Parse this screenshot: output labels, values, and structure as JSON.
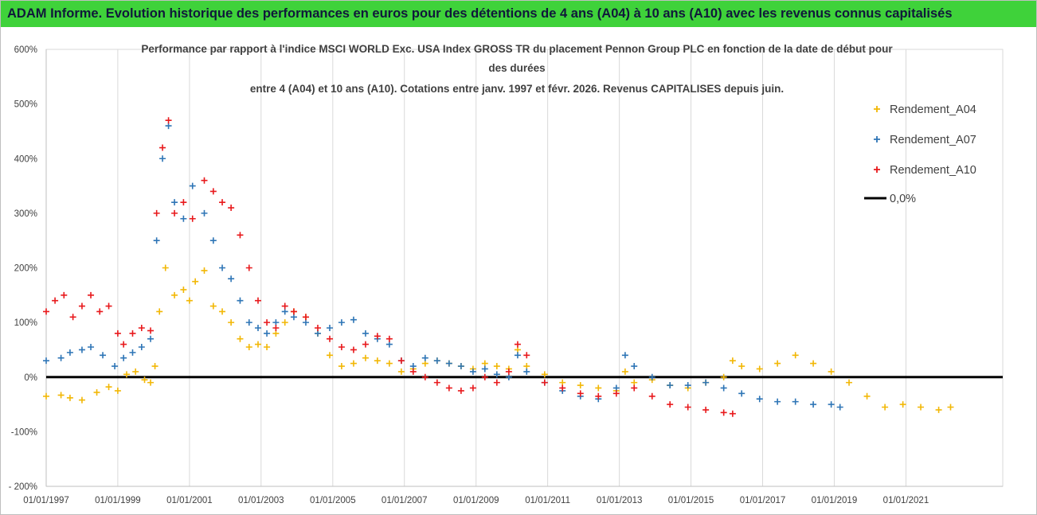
{
  "banner": {
    "text": "ADAM Informe. Evolution historique des performances en euros pour des détentions de 4 ans (A04) à 10 ans (A10) avec les revenus connus capitalisés",
    "background": "#3fd23a"
  },
  "chart_data": {
    "type": "scatter",
    "title_lines": [
      "Performance par rapport à l'indice MSCI WORLD Exc. USA Index GROSS TR  du placement Pennon Group PLC en fonction de la date de début pour",
      "des durées",
      "entre 4 (A04) et 10 ans (A10).  Cotations entre janv. 1997 et févr. 2026. Revenus CAPITALISES depuis juin."
    ],
    "xlabel": "",
    "ylabel": "",
    "x_range": [
      "1997-01-01",
      "2023-09-15"
    ],
    "x_ticks": [
      "01/01/1997",
      "01/01/1999",
      "01/01/2001",
      "01/01/2003",
      "01/01/2005",
      "01/01/2007",
      "01/01/2009",
      "01/01/2011",
      "01/01/2013",
      "01/01/2015",
      "01/01/2017",
      "01/01/2019",
      "01/01/2021"
    ],
    "y_unit": "%",
    "y_range": [
      -200,
      600
    ],
    "y_ticks": [
      "- 200%",
      "-100%",
      "0%",
      "100%",
      "200%",
      "300%",
      "400%",
      "500%",
      "600%"
    ],
    "y_tick_values": [
      -200,
      -100,
      0,
      100,
      200,
      300,
      400,
      500,
      600
    ],
    "grid": {
      "vertical": true,
      "horizontal": false
    },
    "legend_position": "right",
    "legend": [
      "Rendement_A04",
      "Rendement_A07",
      "Rendement_A10",
      "0,0%"
    ],
    "reference_line": {
      "name": "0,0%",
      "value": 0,
      "color": "#000000"
    },
    "series": [
      {
        "name": "Rendement_A04",
        "color": "#f2b705",
        "marker": "+",
        "points": [
          [
            "1997-01-01",
            -35
          ],
          [
            "1997-06-01",
            -33
          ],
          [
            "1997-09-01",
            -38
          ],
          [
            "1998-01-01",
            -42
          ],
          [
            "1998-06-01",
            -28
          ],
          [
            "1998-10-01",
            -18
          ],
          [
            "1999-01-01",
            -25
          ],
          [
            "1999-04-01",
            5
          ],
          [
            "1999-07-01",
            10
          ],
          [
            "1999-10-01",
            -5
          ],
          [
            "1999-12-01",
            -10
          ],
          [
            "2000-01-15",
            20
          ],
          [
            "2000-03-01",
            120
          ],
          [
            "2000-05-01",
            200
          ],
          [
            "2000-08-01",
            150
          ],
          [
            "2000-11-01",
            160
          ],
          [
            "2001-01-01",
            140
          ],
          [
            "2001-03-01",
            175
          ],
          [
            "2001-06-01",
            195
          ],
          [
            "2001-09-01",
            130
          ],
          [
            "2001-12-01",
            120
          ],
          [
            "2002-03-01",
            100
          ],
          [
            "2002-06-01",
            70
          ],
          [
            "2002-09-01",
            55
          ],
          [
            "2002-12-01",
            60
          ],
          [
            "2003-03-01",
            55
          ],
          [
            "2003-06-01",
            80
          ],
          [
            "2003-09-01",
            100
          ],
          [
            "2003-12-01",
            120
          ],
          [
            "2004-04-01",
            110
          ],
          [
            "2004-08-01",
            80
          ],
          [
            "2004-12-01",
            40
          ],
          [
            "2005-04-01",
            20
          ],
          [
            "2005-08-01",
            25
          ],
          [
            "2005-12-01",
            35
          ],
          [
            "2006-04-01",
            30
          ],
          [
            "2006-08-01",
            25
          ],
          [
            "2006-12-01",
            10
          ],
          [
            "2007-04-01",
            15
          ],
          [
            "2007-08-01",
            25
          ],
          [
            "2007-12-01",
            30
          ],
          [
            "2008-04-01",
            25
          ],
          [
            "2008-08-01",
            20
          ],
          [
            "2008-12-01",
            15
          ],
          [
            "2009-04-01",
            25
          ],
          [
            "2009-08-01",
            20
          ],
          [
            "2009-12-01",
            15
          ],
          [
            "2010-03-01",
            50
          ],
          [
            "2010-06-01",
            20
          ],
          [
            "2010-12-01",
            5
          ],
          [
            "2011-06-01",
            -10
          ],
          [
            "2011-12-01",
            -15
          ],
          [
            "2012-06-01",
            -20
          ],
          [
            "2012-12-01",
            -25
          ],
          [
            "2013-03-01",
            10
          ],
          [
            "2013-06-01",
            -10
          ],
          [
            "2013-12-01",
            -5
          ],
          [
            "2014-06-01",
            -15
          ],
          [
            "2014-12-01",
            -20
          ],
          [
            "2015-06-01",
            -10
          ],
          [
            "2015-12-01",
            0
          ],
          [
            "2016-03-01",
            30
          ],
          [
            "2016-06-01",
            20
          ],
          [
            "2016-12-01",
            15
          ],
          [
            "2017-06-01",
            25
          ],
          [
            "2017-12-01",
            40
          ],
          [
            "2018-06-01",
            25
          ],
          [
            "2018-12-01",
            10
          ],
          [
            "2019-06-01",
            -10
          ],
          [
            "2019-12-01",
            -35
          ],
          [
            "2020-06-01",
            -55
          ],
          [
            "2020-12-01",
            -50
          ],
          [
            "2021-06-01",
            -55
          ],
          [
            "2021-12-01",
            -60
          ],
          [
            "2022-04-01",
            -55
          ]
        ]
      },
      {
        "name": "Rendement_A07",
        "color": "#2e75b6",
        "marker": "+",
        "points": [
          [
            "1997-01-01",
            30
          ],
          [
            "1997-06-01",
            35
          ],
          [
            "1997-09-01",
            45
          ],
          [
            "1998-01-01",
            50
          ],
          [
            "1998-04-01",
            55
          ],
          [
            "1998-08-01",
            40
          ],
          [
            "1998-12-01",
            20
          ],
          [
            "1999-03-01",
            35
          ],
          [
            "1999-06-01",
            45
          ],
          [
            "1999-09-01",
            55
          ],
          [
            "1999-12-01",
            70
          ],
          [
            "2000-02-01",
            250
          ],
          [
            "2000-04-01",
            400
          ],
          [
            "2000-06-01",
            460
          ],
          [
            "2000-08-01",
            320
          ],
          [
            "2000-11-01",
            290
          ],
          [
            "2001-02-01",
            350
          ],
          [
            "2001-06-01",
            300
          ],
          [
            "2001-09-01",
            250
          ],
          [
            "2001-12-01",
            200
          ],
          [
            "2002-03-01",
            180
          ],
          [
            "2002-06-01",
            140
          ],
          [
            "2002-09-01",
            100
          ],
          [
            "2002-12-01",
            90
          ],
          [
            "2003-03-01",
            80
          ],
          [
            "2003-06-01",
            100
          ],
          [
            "2003-09-01",
            120
          ],
          [
            "2003-12-01",
            110
          ],
          [
            "2004-04-01",
            100
          ],
          [
            "2004-08-01",
            80
          ],
          [
            "2004-12-01",
            90
          ],
          [
            "2005-04-01",
            100
          ],
          [
            "2005-08-01",
            105
          ],
          [
            "2005-12-01",
            80
          ],
          [
            "2006-04-01",
            70
          ],
          [
            "2006-08-01",
            60
          ],
          [
            "2006-12-01",
            30
          ],
          [
            "2007-04-01",
            20
          ],
          [
            "2007-08-01",
            35
          ],
          [
            "2007-12-01",
            30
          ],
          [
            "2008-04-01",
            25
          ],
          [
            "2008-08-01",
            20
          ],
          [
            "2008-12-01",
            10
          ],
          [
            "2009-04-01",
            15
          ],
          [
            "2009-08-01",
            5
          ],
          [
            "2009-12-01",
            0
          ],
          [
            "2010-03-01",
            40
          ],
          [
            "2010-06-01",
            10
          ],
          [
            "2010-12-01",
            -10
          ],
          [
            "2011-06-01",
            -25
          ],
          [
            "2011-12-01",
            -35
          ],
          [
            "2012-06-01",
            -40
          ],
          [
            "2012-12-01",
            -20
          ],
          [
            "2013-03-01",
            40
          ],
          [
            "2013-06-01",
            20
          ],
          [
            "2013-12-01",
            0
          ],
          [
            "2014-06-01",
            -15
          ],
          [
            "2014-12-01",
            -15
          ],
          [
            "2015-06-01",
            -10
          ],
          [
            "2015-12-01",
            -20
          ],
          [
            "2016-06-01",
            -30
          ],
          [
            "2016-12-01",
            -40
          ],
          [
            "2017-06-01",
            -45
          ],
          [
            "2017-12-01",
            -45
          ],
          [
            "2018-06-01",
            -50
          ],
          [
            "2018-12-01",
            -50
          ],
          [
            "2019-03-01",
            -55
          ]
        ]
      },
      {
        "name": "Rendement_A10",
        "color": "#e8191c",
        "marker": "+",
        "points": [
          [
            "1997-01-01",
            120
          ],
          [
            "1997-04-01",
            140
          ],
          [
            "1997-07-01",
            150
          ],
          [
            "1997-10-01",
            110
          ],
          [
            "1998-01-01",
            130
          ],
          [
            "1998-04-01",
            150
          ],
          [
            "1998-07-01",
            120
          ],
          [
            "1998-10-01",
            130
          ],
          [
            "1999-01-01",
            80
          ],
          [
            "1999-03-01",
            60
          ],
          [
            "1999-06-01",
            80
          ],
          [
            "1999-09-01",
            90
          ],
          [
            "1999-12-01",
            85
          ],
          [
            "2000-02-01",
            300
          ],
          [
            "2000-04-01",
            420
          ],
          [
            "2000-06-01",
            470
          ],
          [
            "2000-08-01",
            300
          ],
          [
            "2000-11-01",
            320
          ],
          [
            "2001-02-01",
            290
          ],
          [
            "2001-06-01",
            360
          ],
          [
            "2001-09-01",
            340
          ],
          [
            "2001-12-01",
            320
          ],
          [
            "2002-03-01",
            310
          ],
          [
            "2002-06-01",
            260
          ],
          [
            "2002-09-01",
            200
          ],
          [
            "2002-12-01",
            140
          ],
          [
            "2003-03-01",
            100
          ],
          [
            "2003-06-01",
            90
          ],
          [
            "2003-09-01",
            130
          ],
          [
            "2003-12-01",
            120
          ],
          [
            "2004-04-01",
            110
          ],
          [
            "2004-08-01",
            90
          ],
          [
            "2004-12-01",
            70
          ],
          [
            "2005-04-01",
            55
          ],
          [
            "2005-08-01",
            50
          ],
          [
            "2005-12-01",
            60
          ],
          [
            "2006-04-01",
            75
          ],
          [
            "2006-08-01",
            70
          ],
          [
            "2006-12-01",
            30
          ],
          [
            "2007-04-01",
            10
          ],
          [
            "2007-08-01",
            0
          ],
          [
            "2007-12-01",
            -10
          ],
          [
            "2008-04-01",
            -20
          ],
          [
            "2008-08-01",
            -25
          ],
          [
            "2008-12-01",
            -20
          ],
          [
            "2009-04-01",
            0
          ],
          [
            "2009-08-01",
            -10
          ],
          [
            "2009-12-01",
            10
          ],
          [
            "2010-03-01",
            60
          ],
          [
            "2010-06-01",
            40
          ],
          [
            "2010-12-01",
            -10
          ],
          [
            "2011-06-01",
            -20
          ],
          [
            "2011-12-01",
            -30
          ],
          [
            "2012-06-01",
            -35
          ],
          [
            "2012-12-01",
            -30
          ],
          [
            "2013-06-01",
            -20
          ],
          [
            "2013-12-01",
            -35
          ],
          [
            "2014-06-01",
            -50
          ],
          [
            "2014-12-01",
            -55
          ],
          [
            "2015-06-01",
            -60
          ],
          [
            "2015-12-01",
            -65
          ],
          [
            "2016-03-01",
            -67
          ]
        ]
      }
    ]
  }
}
